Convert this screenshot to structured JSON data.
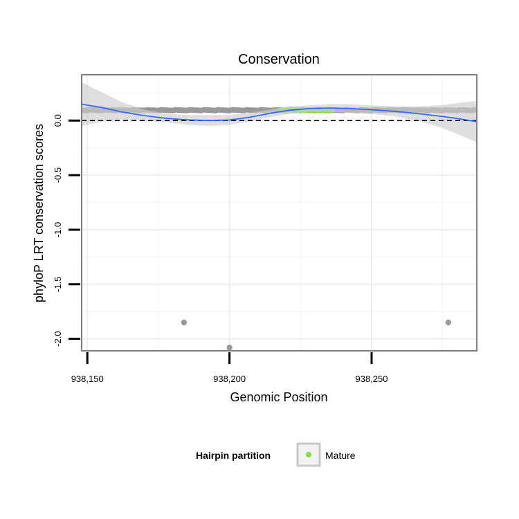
{
  "chart_data": {
    "type": "scatter",
    "title": "Conservation",
    "xlabel": "Genomic Position",
    "ylabel": "phyloP LRT conservation scores",
    "xlim": [
      938148,
      938287
    ],
    "ylim": [
      -2.11,
      0.42
    ],
    "x_ticks": [
      938150,
      938200,
      938250
    ],
    "x_tick_labels": [
      "938,150",
      "938,200",
      "938,250"
    ],
    "y_ticks": [
      0.0,
      -0.5,
      -1.0,
      -1.5,
      -2.0
    ],
    "y_tick_labels": [
      "0.0",
      "-0.5",
      "-1.0",
      "-1.5",
      "-2.0"
    ],
    "grid": true,
    "reference_line": {
      "y": 0,
      "style": "dashed",
      "color": "#000000"
    },
    "series": [
      {
        "group": "other",
        "color": "#999999",
        "dense_band": {
          "x_range": [
            938148,
            938287
          ],
          "y": 0.095
        },
        "outliers": [
          {
            "x": 938184,
            "y": -1.85
          },
          {
            "x": 938200,
            "y": -2.08
          },
          {
            "x": 938277,
            "y": -1.85
          }
        ]
      },
      {
        "name": "Mature",
        "color": "#7FE23C",
        "dense_band": {
          "x_range": [
            938218,
            938236
          ],
          "y": 0.095
        }
      }
    ],
    "smooth": {
      "color": "#3366FF",
      "ribbon_color": "#cccccc",
      "x": [
        938148,
        938155,
        938162,
        938170,
        938178,
        938186,
        938193,
        938200,
        938207,
        938214,
        938221,
        938228,
        938235,
        938242,
        938250,
        938258,
        938266,
        938274,
        938280,
        938287
      ],
      "y": [
        0.15,
        0.12,
        0.08,
        0.045,
        0.02,
        0.005,
        0.0,
        0.005,
        0.03,
        0.065,
        0.095,
        0.11,
        0.115,
        0.11,
        0.1,
        0.085,
        0.065,
        0.04,
        0.02,
        -0.01
      ],
      "lower": [
        -0.05,
        -0.01,
        0.01,
        0.0,
        -0.02,
        -0.04,
        -0.05,
        -0.04,
        -0.01,
        0.03,
        0.06,
        0.08,
        0.08,
        0.07,
        0.06,
        0.04,
        0.0,
        -0.06,
        -0.12,
        -0.2
      ],
      "upper": [
        0.35,
        0.26,
        0.17,
        0.1,
        0.06,
        0.05,
        0.05,
        0.05,
        0.07,
        0.1,
        0.13,
        0.14,
        0.15,
        0.15,
        0.14,
        0.13,
        0.13,
        0.14,
        0.16,
        0.18
      ]
    },
    "legend": {
      "title": "Hairpin partition",
      "entries": [
        {
          "label": "Mature",
          "color": "#7FE23C"
        }
      ],
      "position": "bottom"
    }
  }
}
